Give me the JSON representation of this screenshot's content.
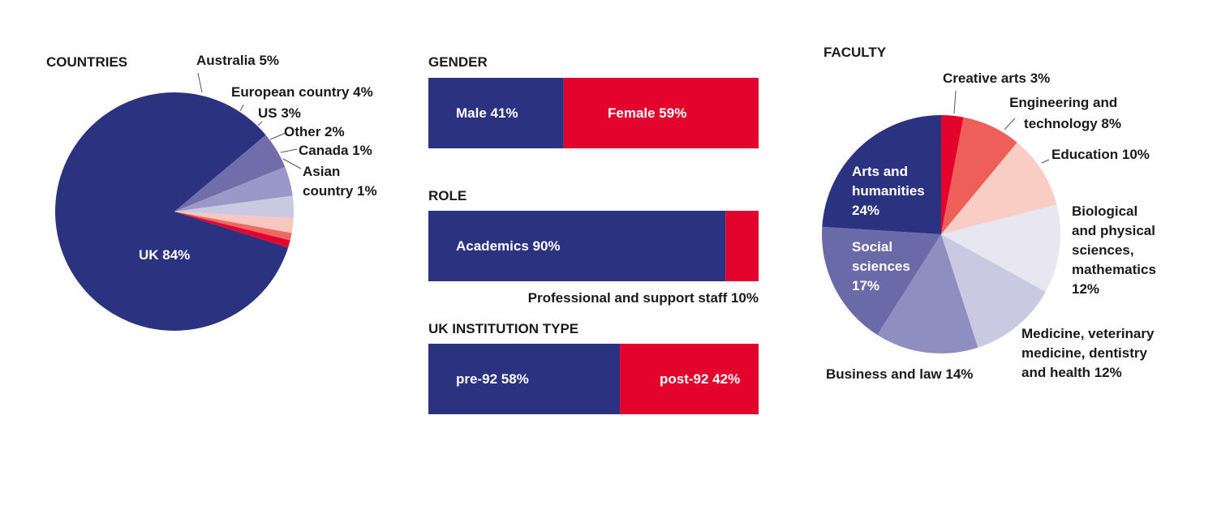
{
  "colors": {
    "navy": "#2b3280",
    "red": "#e4032c",
    "text": "#1a1a1a"
  },
  "chart_data": [
    {
      "type": "pie",
      "title": "COUNTRIES",
      "slices": [
        {
          "label": "UK 84%",
          "value": 84,
          "color": "#2b3280"
        },
        {
          "label": "Australia 5%",
          "value": 5,
          "color": "#6f6eaa"
        },
        {
          "label": "European country 4%",
          "value": 4,
          "color": "#9a98c8"
        },
        {
          "label": "US 3%",
          "value": 3,
          "color": "#cac9e2"
        },
        {
          "label": "Other 2%",
          "value": 2,
          "color": "#f8c8c0"
        },
        {
          "label": "Canada 1%",
          "value": 1,
          "color": "#ed6a63"
        },
        {
          "label": "Asian country 1%",
          "value": 1,
          "color": "#e4032c"
        }
      ]
    },
    {
      "type": "bar",
      "title": "GENDER",
      "segments": [
        {
          "label": "Male 41%",
          "value": 41,
          "color": "#2b3280"
        },
        {
          "label": "Female 59%",
          "value": 59,
          "color": "#e4032c"
        }
      ]
    },
    {
      "type": "bar",
      "title": "ROLE",
      "segments": [
        {
          "label": "Academics 90%",
          "value": 90,
          "color": "#2b3280"
        },
        {
          "label": "Professional and support staff 10%",
          "value": 10,
          "color": "#e4032c"
        }
      ]
    },
    {
      "type": "bar",
      "title": "UK INSTITUTION TYPE",
      "segments": [
        {
          "label": "pre-92 58%",
          "value": 58,
          "color": "#2b3280"
        },
        {
          "label": "post-92 42%",
          "value": 42,
          "color": "#e4032c"
        }
      ]
    },
    {
      "type": "pie",
      "title": "FACULTY",
      "slices": [
        {
          "label": "Creative arts 3%",
          "value": 3,
          "color": "#e4032c"
        },
        {
          "label": "Engineering and technology 8%",
          "value": 8,
          "color": "#ed5f58"
        },
        {
          "label": "Education 10%",
          "value": 10,
          "color": "#f9cdc3"
        },
        {
          "label": "Biological and physical sciences, mathematics 12%",
          "value": 12,
          "color": "#e7e6f1"
        },
        {
          "label": "Medicine, veterinary medicine, dentistry and health 12%",
          "value": 12,
          "color": "#cac9e2"
        },
        {
          "label": "Business and law 14%",
          "value": 14,
          "color": "#8f8ec0"
        },
        {
          "label": "Social sciences 17%",
          "value": 17,
          "color": "#6b6aa8"
        },
        {
          "label": "Arts and humanities 24%",
          "value": 24,
          "color": "#2b3280"
        }
      ]
    }
  ]
}
